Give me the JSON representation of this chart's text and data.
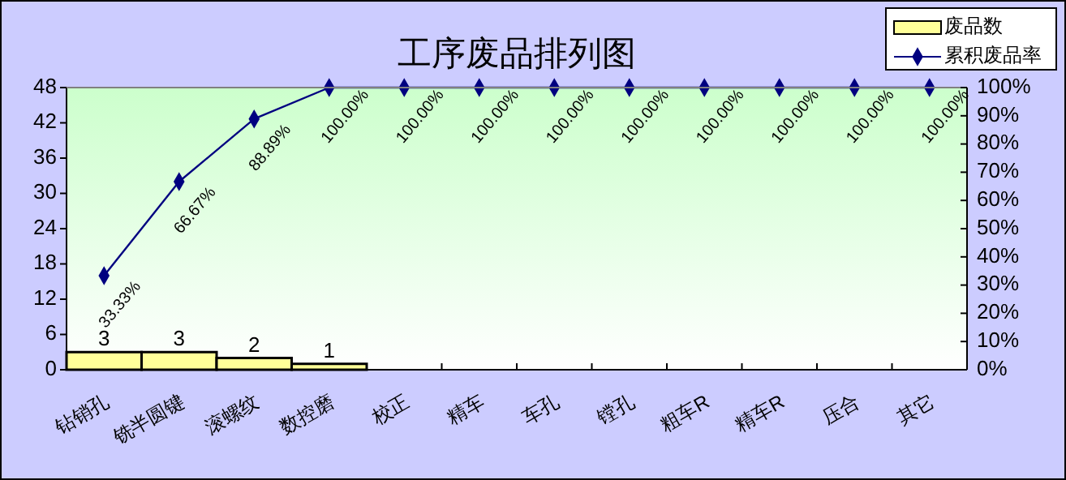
{
  "chart_data": {
    "type": "bar",
    "title": "工序废品排列图",
    "categories": [
      "钻销孔",
      "铣半圆键",
      "滚螺纹",
      "数控磨",
      "校正",
      "精车",
      "车孔",
      "镗孔",
      "粗车R",
      "精车R",
      "压合",
      "其它"
    ],
    "series": [
      {
        "name": "废品数",
        "color": "#ffff99",
        "values": [
          3,
          3,
          2,
          1,
          0,
          0,
          0,
          0,
          0,
          0,
          0,
          0
        ],
        "value_labels": [
          "3",
          "3",
          "2",
          "1",
          null,
          null,
          null,
          null,
          null,
          null,
          null,
          null
        ]
      },
      {
        "name": "累积废品率",
        "type": "line",
        "axis": "y2",
        "color": "#000080",
        "values": [
          33.33,
          66.67,
          88.89,
          100,
          100,
          100,
          100,
          100,
          100,
          100,
          100,
          100
        ],
        "value_labels": [
          "33.33%",
          "66.67%",
          "88.89%",
          "100.00%",
          "100.00%",
          "100.00%",
          "100.00%",
          "100.00%",
          "100.00%",
          "100.00%",
          "100.00%",
          "100.00%"
        ]
      }
    ],
    "ylim": [
      0,
      48
    ],
    "yticks": [
      0,
      6,
      12,
      18,
      24,
      30,
      36,
      42,
      48
    ],
    "y2lim": [
      0,
      100
    ],
    "y2ticks": [
      {
        "value": 0,
        "label": "0%"
      },
      {
        "value": 10,
        "label": "10%"
      },
      {
        "value": 20,
        "label": "20%"
      },
      {
        "value": 30,
        "label": "30%"
      },
      {
        "value": 40,
        "label": "40%"
      },
      {
        "value": 50,
        "label": "50%"
      },
      {
        "value": 60,
        "label": "60%"
      },
      {
        "value": 70,
        "label": "70%"
      },
      {
        "value": 80,
        "label": "80%"
      },
      {
        "value": 90,
        "label": "90%"
      },
      {
        "value": 100,
        "label": "100%"
      }
    ],
    "legend": "top right",
    "marker": "diamond",
    "grid": false
  }
}
